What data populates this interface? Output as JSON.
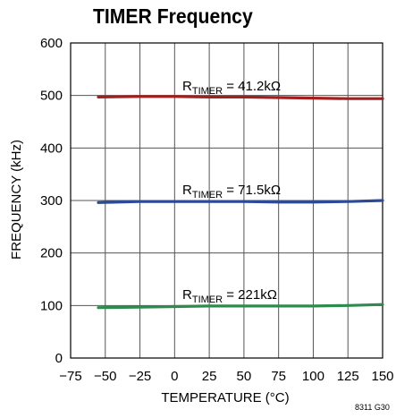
{
  "chart_data": {
    "type": "line",
    "title": "TIMER Frequency",
    "xlabel": "TEMPERATURE (°C)",
    "ylabel": "FREQUENCY (kHz)",
    "xlim": [
      -75,
      150
    ],
    "ylim": [
      0,
      600
    ],
    "xticks": [
      -75,
      -50,
      -25,
      0,
      25,
      50,
      75,
      100,
      125,
      150
    ],
    "yticks": [
      0,
      100,
      200,
      300,
      400,
      500,
      600
    ],
    "xtick_labels": [
      "−75",
      "−50",
      "−25",
      "0",
      "25",
      "50",
      "75",
      "100",
      "125",
      "150"
    ],
    "ytick_labels": [
      "0",
      "100",
      "200",
      "300",
      "400",
      "500",
      "600"
    ],
    "grid": true,
    "series": [
      {
        "name": "R_TIMER = 41.2kΩ",
        "label_main": "R",
        "label_sub": "TIMER",
        "label_rest": " = 41.2kΩ",
        "color": "#a51e1e",
        "x": [
          -55,
          -25,
          0,
          25,
          50,
          75,
          100,
          125,
          150
        ],
        "y": [
          497,
          498,
          498,
          497,
          497,
          496,
          495,
          494,
          494
        ]
      },
      {
        "name": "R_TIMER = 71.5kΩ",
        "label_main": "R",
        "label_sub": "TIMER",
        "label_rest": " = 71.5kΩ",
        "color": "#2c4a9a",
        "x": [
          -55,
          -25,
          0,
          25,
          50,
          75,
          100,
          125,
          150
        ],
        "y": [
          296,
          298,
          298,
          298,
          298,
          297,
          297,
          298,
          300
        ]
      },
      {
        "name": "R_TIMER = 221kΩ",
        "label_main": "R",
        "label_sub": "TIMER",
        "label_rest": " = 221kΩ",
        "color": "#2e8b4e",
        "x": [
          -55,
          -25,
          0,
          25,
          50,
          75,
          100,
          125,
          150
        ],
        "y": [
          96,
          97,
          98,
          99,
          99,
          99,
          99,
          100,
          102
        ]
      }
    ]
  },
  "figure_id": "8311 G30"
}
